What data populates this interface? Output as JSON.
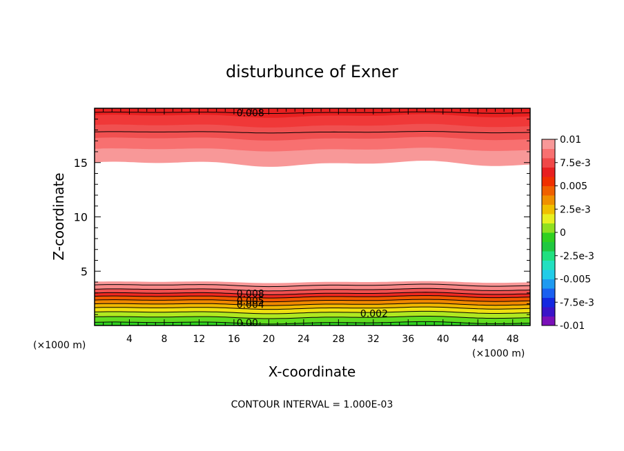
{
  "chart_data": {
    "type": "heatmap",
    "title": "disturbunce of Exner",
    "xlabel": "X-coordinate",
    "ylabel": "Z-coordinate",
    "x_unit": "(×1000 m)",
    "footer": "CONTOUR INTERVAL = 1.000E-03",
    "xlim": [
      0,
      50
    ],
    "ylim": [
      0,
      20
    ],
    "x_ticks": [
      4,
      8,
      12,
      16,
      20,
      24,
      28,
      32,
      36,
      40,
      44,
      48
    ],
    "y_ticks": [
      5,
      10,
      15
    ],
    "colorbar": {
      "min": -0.01,
      "max": 0.01,
      "labels": [
        "0.01",
        "7.5e-3",
        "0.005",
        "2.5e-3",
        "0",
        "-2.5e-3",
        "-0.005",
        "-7.5e-3",
        "-0.01"
      ],
      "colors": [
        "#7a10b8",
        "#3a14c8",
        "#1428e0",
        "#1a60f0",
        "#1e9af0",
        "#22cce8",
        "#22e0c0",
        "#20e080",
        "#20c840",
        "#30d020",
        "#90e020",
        "#e8f020",
        "#f0c000",
        "#f09000",
        "#f06000",
        "#f03000",
        "#e82020",
        "#f04848",
        "#f87070",
        "#f89898"
      ]
    },
    "bands": [
      {
        "level": 0.0,
        "color": "#30d020"
      },
      {
        "level": 0.001,
        "color": "#60dc20"
      },
      {
        "level": 0.002,
        "color": "#b0e820"
      },
      {
        "level": 0.003,
        "color": "#f0e010"
      },
      {
        "level": 0.004,
        "color": "#f0b800"
      },
      {
        "level": 0.005,
        "color": "#f08800"
      },
      {
        "level": 0.006,
        "color": "#f05800"
      },
      {
        "level": 0.007,
        "color": "#f02820"
      },
      {
        "level": 0.008,
        "color": "#f05050"
      },
      {
        "level": 0.009,
        "color": "#f88888"
      }
    ],
    "bottom_contours": [
      {
        "z": 0.25,
        "label": "0.00"
      },
      {
        "z": 0.75
      },
      {
        "z": 1.2,
        "label": "0.002"
      },
      {
        "z": 1.6
      },
      {
        "z": 1.95,
        "label": "0.004"
      },
      {
        "z": 2.3,
        "label": "0.005"
      },
      {
        "z": 2.65
      },
      {
        "z": 2.95,
        "label": "0.008"
      },
      {
        "z": 3.3
      },
      {
        "z": 3.7
      }
    ],
    "top_contours": [
      {
        "z": 19.6,
        "label": "0.008"
      },
      {
        "z": 17.8
      }
    ],
    "top_bands": [
      {
        "z": 14.9,
        "color": "#f89898"
      },
      {
        "z": 16.2,
        "color": "#f87070"
      },
      {
        "z": 17.2,
        "color": "#f05050"
      },
      {
        "z": 18.4,
        "color": "#f03838"
      },
      {
        "z": 19.3,
        "color": "#e82020"
      }
    ]
  }
}
